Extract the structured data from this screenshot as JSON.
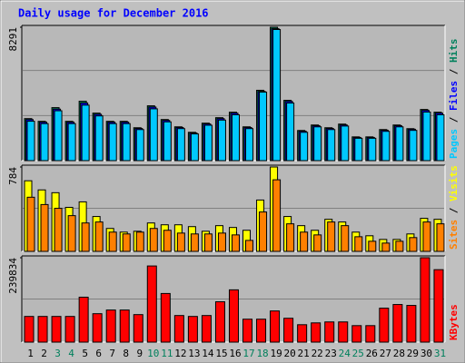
{
  "chart_data": [
    {
      "type": "bar",
      "title": "Daily usage for December 2016",
      "legend_separator": " / ",
      "ylim": [
        0,
        8291
      ],
      "yticks": [
        8291
      ],
      "grid": true,
      "series": [
        {
          "name": "Hits",
          "color": "#00805C",
          "values": [
            2612,
            2442,
            3294,
            2442,
            3691,
            2953,
            2442,
            2442,
            2044,
            3407,
            2555,
            2101,
            1760,
            2328,
            2669,
            3010,
            2101,
            4372,
            8291,
            3748,
            1874,
            2215,
            2044,
            2271,
            1476,
            1476,
            1931,
            2215,
            1987,
            3180,
            3010
          ]
        },
        {
          "name": "Files",
          "color": "#0000FF",
          "values": [
            2550,
            2390,
            3200,
            2390,
            3580,
            2880,
            2390,
            2390,
            2000,
            3330,
            2500,
            2060,
            1720,
            2280,
            2610,
            2950,
            2060,
            4300,
            8200,
            3680,
            1830,
            2170,
            2000,
            2220,
            1440,
            1440,
            1890,
            2170,
            1950,
            3120,
            2950
          ]
        },
        {
          "name": "Pages",
          "color": "#00C8FF",
          "values": [
            2450,
            2300,
            3100,
            2300,
            3450,
            2780,
            2300,
            2300,
            1930,
            3220,
            2410,
            1990,
            1660,
            2200,
            2520,
            2850,
            1990,
            4260,
            8150,
            3580,
            1760,
            2100,
            1930,
            2150,
            1390,
            1390,
            1820,
            2100,
            1880,
            3020,
            2850
          ]
        }
      ]
    },
    {
      "type": "bar",
      "legend_separator": " / ",
      "ylim": [
        0,
        784
      ],
      "yticks": [
        784
      ],
      "grid": true,
      "series": [
        {
          "name": "Visits",
          "color": "#FFFF00",
          "values": [
            656,
            571,
            545,
            409,
            460,
            324,
            213,
            179,
            187,
            264,
            247,
            247,
            230,
            187,
            239,
            222,
            196,
            477,
            784,
            324,
            239,
            196,
            298,
            273,
            179,
            145,
            111,
            111,
            162,
            307,
            298
          ]
        },
        {
          "name": "Sites",
          "color": "#FF8000",
          "values": [
            503,
            435,
            400,
            332,
            264,
            273,
            179,
            162,
            179,
            213,
            196,
            170,
            162,
            162,
            170,
            153,
            102,
            366,
            665,
            256,
            179,
            153,
            273,
            239,
            136,
            94,
            77,
            94,
            128,
            273,
            256
          ]
        }
      ]
    },
    {
      "type": "bar",
      "legend_separator": " / ",
      "ylim": [
        0,
        239834
      ],
      "yticks": [
        239834
      ],
      "grid": true,
      "series": [
        {
          "name": "KBytes",
          "color": "#FF0000",
          "values": [
            73000,
            73000,
            73000,
            73000,
            127700,
            80800,
            91200,
            91200,
            78200,
            216400,
            138200,
            75600,
            73000,
            75600,
            114700,
            148600,
            65200,
            65200,
            88600,
            67800,
            49500,
            54700,
            57400,
            57400,
            46900,
            46900,
            96500,
            106900,
            104300,
            239834,
            205900
          ]
        }
      ],
      "categories": [
        "1",
        "2",
        "3",
        "4",
        "5",
        "6",
        "7",
        "8",
        "9",
        "10",
        "11",
        "12",
        "13",
        "14",
        "15",
        "16",
        "17",
        "18",
        "19",
        "20",
        "21",
        "22",
        "23",
        "24",
        "25",
        "26",
        "27",
        "28",
        "29",
        "30",
        "31"
      ],
      "category_colors": [
        "#000000",
        "#000000",
        "#00805C",
        "#00805C",
        "#000000",
        "#000000",
        "#000000",
        "#000000",
        "#000000",
        "#00805C",
        "#00805C",
        "#000000",
        "#000000",
        "#000000",
        "#000000",
        "#000000",
        "#00805C",
        "#00805C",
        "#000000",
        "#000000",
        "#000000",
        "#000000",
        "#000000",
        "#00805C",
        "#00805C",
        "#000000",
        "#000000",
        "#000000",
        "#000000",
        "#000000",
        "#00805C"
      ]
    }
  ]
}
